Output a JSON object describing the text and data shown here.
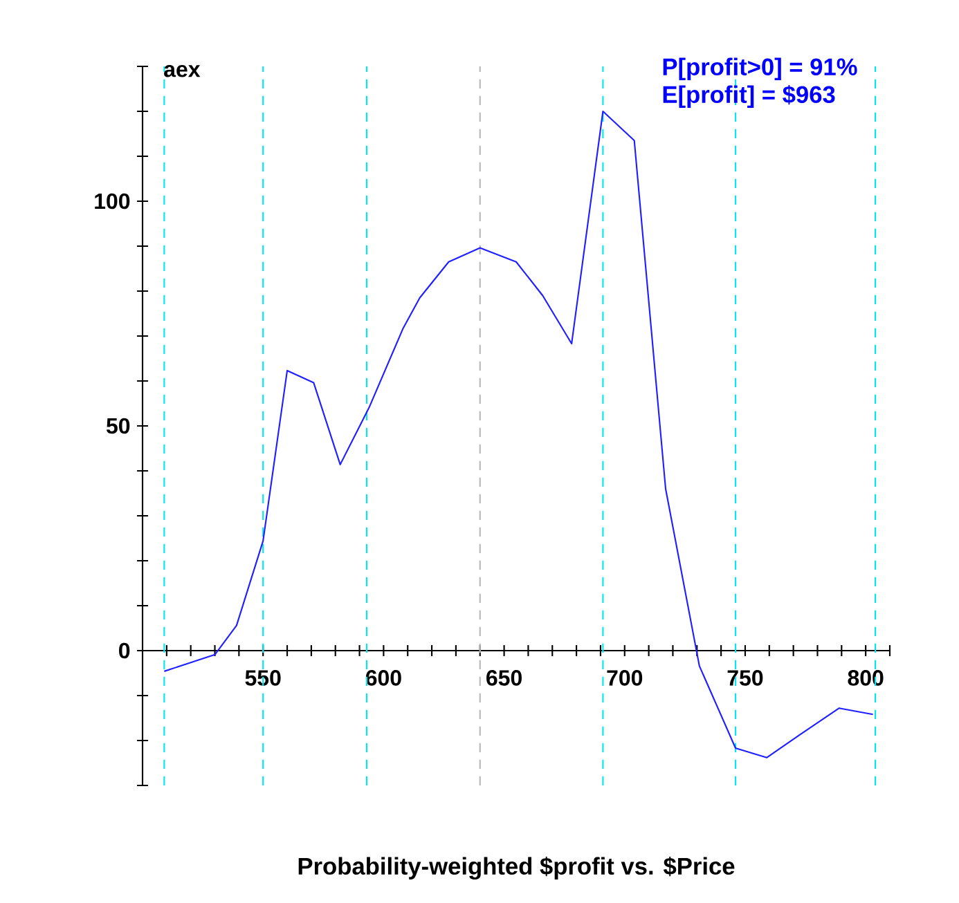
{
  "chart_data": {
    "type": "line",
    "xlabel": "Probability-weighted $profit vs. $Price",
    "ylabel": "aex",
    "annotations": [
      "P[profit>0] = 91%",
      "E[profit] = $963"
    ],
    "series": [
      {
        "color": "#1f1fff",
        "x": [
          509,
          530,
          539,
          550,
          560,
          571,
          582,
          594,
          608,
          615,
          627,
          640,
          655,
          666,
          678,
          691,
          704,
          717,
          731,
          746,
          759,
          773,
          789,
          803
        ],
        "values": [
          -4.6,
          -0.9,
          5.6,
          24.4,
          62.3,
          59.6,
          41.4,
          54.1,
          71.6,
          78.5,
          86.5,
          89.6,
          86.5,
          79,
          68.3,
          120,
          113.5,
          36,
          -3.4,
          -21.7,
          -23.8,
          -18.6,
          -12.8,
          -14.2
        ]
      }
    ],
    "xlim": [
      500,
      810
    ],
    "ylim": [
      -30,
      130
    ],
    "xticks": [
      {
        "value": 510,
        "label": null
      },
      {
        "value": 520,
        "label": null
      },
      {
        "value": 530,
        "label": null
      },
      {
        "value": 540,
        "label": null
      },
      550,
      {
        "value": 560,
        "label": null
      },
      {
        "value": 570,
        "label": null
      },
      {
        "value": 580,
        "label": null
      },
      {
        "value": 590,
        "label": null
      },
      600,
      {
        "value": 610,
        "label": null
      },
      {
        "value": 620,
        "label": null
      },
      {
        "value": 630,
        "label": null
      },
      {
        "value": 640,
        "label": null
      },
      650,
      {
        "value": 660,
        "label": null
      },
      {
        "value": 670,
        "label": null
      },
      {
        "value": 680,
        "label": null
      },
      {
        "value": 690,
        "label": null
      },
      700,
      {
        "value": 710,
        "label": null
      },
      {
        "value": 720,
        "label": null
      },
      {
        "value": 730,
        "label": null
      },
      {
        "value": 740,
        "label": null
      },
      750,
      {
        "value": 760,
        "label": null
      },
      {
        "value": 770,
        "label": null
      },
      {
        "value": 780,
        "label": null
      },
      {
        "value": 790,
        "label": null
      },
      800,
      {
        "value": 810,
        "label": null
      }
    ],
    "yticks": [
      {
        "value": -30,
        "label": null
      },
      {
        "value": -20,
        "label": null
      },
      {
        "value": -10,
        "label": null
      },
      0,
      {
        "value": 10,
        "label": null
      },
      {
        "value": 20,
        "label": null
      },
      {
        "value": 30,
        "label": null
      },
      {
        "value": 40,
        "label": null
      },
      50,
      {
        "value": 60,
        "label": null
      },
      {
        "value": 70,
        "label": null
      },
      {
        "value": 80,
        "label": null
      },
      {
        "value": 90,
        "label": null
      },
      100,
      {
        "value": 110,
        "label": null
      },
      {
        "value": 120,
        "label": null
      },
      {
        "value": 130,
        "label": null
      }
    ],
    "ref_lines": [
      {
        "axis": "x",
        "value": 509,
        "color": "#00e8f0",
        "line_style": "dashed"
      },
      {
        "axis": "x",
        "value": 550,
        "color": "#00e8f0",
        "line_style": "dashed"
      },
      {
        "axis": "x",
        "value": 593,
        "color": "#00e8f0",
        "line_style": "dashed"
      },
      {
        "axis": "x",
        "value": 640,
        "color": "#b8b8b8",
        "line_style": "dashed"
      },
      {
        "axis": "x",
        "value": 691,
        "color": "#00e8f0",
        "line_style": "dashed"
      },
      {
        "axis": "x",
        "value": 746,
        "color": "#00e8f0",
        "line_style": "dashed"
      },
      {
        "axis": "x",
        "value": 804,
        "color": "#00e8f0",
        "line_style": "dashed"
      }
    ],
    "grid": false,
    "marker": "none",
    "line_style": "solid"
  }
}
